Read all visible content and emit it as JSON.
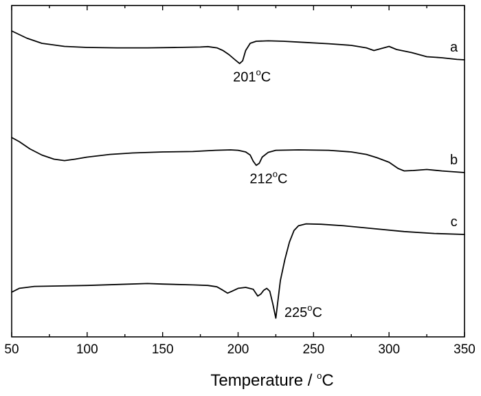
{
  "chart_data": {
    "type": "line",
    "xlabel": "Temperature / ",
    "xlabel_sup": "o",
    "xlabel_unit": "C",
    "xlim": [
      50,
      350
    ],
    "xticks": [
      50,
      100,
      150,
      200,
      250,
      300,
      350
    ],
    "y_ticks_shown": false,
    "grid": false,
    "series": [
      {
        "name": "a",
        "points": [
          [
            50,
            0.0
          ],
          [
            60,
            -0.35
          ],
          [
            70,
            -0.6
          ],
          [
            85,
            -0.75
          ],
          [
            100,
            -0.8
          ],
          [
            120,
            -0.82
          ],
          [
            140,
            -0.82
          ],
          [
            160,
            -0.8
          ],
          [
            175,
            -0.78
          ],
          [
            180,
            -0.76
          ],
          [
            186,
            -0.82
          ],
          [
            190,
            -0.95
          ],
          [
            194,
            -1.15
          ],
          [
            198,
            -1.4
          ],
          [
            201,
            -1.58
          ],
          [
            203,
            -1.45
          ],
          [
            205,
            -0.95
          ],
          [
            208,
            -0.6
          ],
          [
            212,
            -0.5
          ],
          [
            220,
            -0.48
          ],
          [
            230,
            -0.5
          ],
          [
            245,
            -0.56
          ],
          [
            260,
            -0.62
          ],
          [
            275,
            -0.7
          ],
          [
            285,
            -0.82
          ],
          [
            290,
            -0.95
          ],
          [
            295,
            -0.85
          ],
          [
            300,
            -0.75
          ],
          [
            305,
            -0.9
          ],
          [
            315,
            -1.05
          ],
          [
            325,
            -1.25
          ],
          [
            335,
            -1.3
          ],
          [
            345,
            -1.38
          ],
          [
            350,
            -1.4
          ]
        ]
      },
      {
        "name": "b",
        "points": [
          [
            50,
            0.0
          ],
          [
            55,
            -0.2
          ],
          [
            62,
            -0.55
          ],
          [
            70,
            -0.85
          ],
          [
            78,
            -1.05
          ],
          [
            85,
            -1.12
          ],
          [
            92,
            -1.05
          ],
          [
            100,
            -0.95
          ],
          [
            115,
            -0.82
          ],
          [
            130,
            -0.75
          ],
          [
            150,
            -0.7
          ],
          [
            170,
            -0.68
          ],
          [
            185,
            -0.62
          ],
          [
            195,
            -0.6
          ],
          [
            200,
            -0.62
          ],
          [
            205,
            -0.7
          ],
          [
            208,
            -0.85
          ],
          [
            210,
            -1.15
          ],
          [
            212,
            -1.35
          ],
          [
            214,
            -1.25
          ],
          [
            216,
            -0.95
          ],
          [
            220,
            -0.72
          ],
          [
            225,
            -0.62
          ],
          [
            240,
            -0.6
          ],
          [
            260,
            -0.62
          ],
          [
            275,
            -0.7
          ],
          [
            285,
            -0.82
          ],
          [
            292,
            -0.98
          ],
          [
            300,
            -1.2
          ],
          [
            306,
            -1.5
          ],
          [
            310,
            -1.62
          ],
          [
            316,
            -1.6
          ],
          [
            325,
            -1.55
          ],
          [
            335,
            -1.62
          ],
          [
            350,
            -1.7
          ]
        ]
      },
      {
        "name": "c",
        "points": [
          [
            50,
            0.0
          ],
          [
            55,
            0.2
          ],
          [
            65,
            0.3
          ],
          [
            80,
            0.32
          ],
          [
            100,
            0.35
          ],
          [
            120,
            0.4
          ],
          [
            140,
            0.45
          ],
          [
            150,
            0.42
          ],
          [
            160,
            0.4
          ],
          [
            170,
            0.38
          ],
          [
            180,
            0.35
          ],
          [
            186,
            0.28
          ],
          [
            190,
            0.1
          ],
          [
            193,
            -0.05
          ],
          [
            196,
            0.05
          ],
          [
            200,
            0.2
          ],
          [
            205,
            0.25
          ],
          [
            210,
            0.15
          ],
          [
            213,
            -0.2
          ],
          [
            215,
            -0.1
          ],
          [
            217,
            0.1
          ],
          [
            219,
            0.2
          ],
          [
            221,
            0.05
          ],
          [
            223,
            -0.6
          ],
          [
            225,
            -1.35
          ],
          [
            226,
            -0.7
          ],
          [
            228,
            0.6
          ],
          [
            231,
            1.7
          ],
          [
            234,
            2.6
          ],
          [
            237,
            3.2
          ],
          [
            240,
            3.45
          ],
          [
            245,
            3.55
          ],
          [
            255,
            3.53
          ],
          [
            270,
            3.45
          ],
          [
            290,
            3.3
          ],
          [
            310,
            3.15
          ],
          [
            330,
            3.05
          ],
          [
            350,
            3.0
          ]
        ]
      }
    ],
    "annotations": [
      {
        "num": "201",
        "sup": "o",
        "unit": "C",
        "series": "a",
        "x": 201
      },
      {
        "num": "212",
        "sup": "o",
        "unit": "C",
        "series": "b",
        "x": 212
      },
      {
        "num": "225",
        "sup": "o",
        "unit": "C",
        "series": "c",
        "x": 225
      }
    ],
    "line_color": "#000000"
  }
}
